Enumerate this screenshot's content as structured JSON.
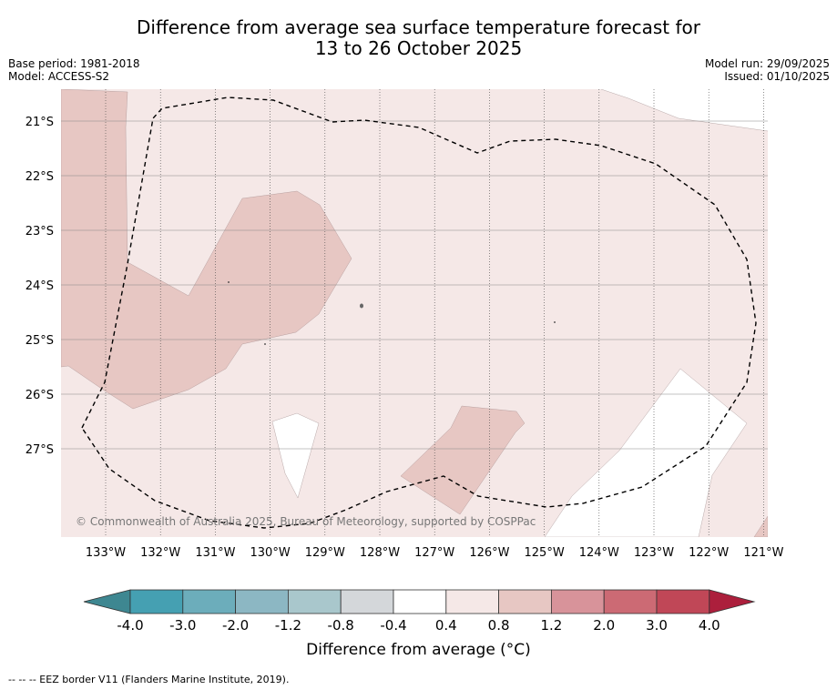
{
  "title": {
    "line1": "Difference from average sea surface temperature forecast for",
    "line2": "13 to 26 October 2025"
  },
  "meta": {
    "base_period": "Base period: 1981-2018",
    "model": "Model: ACCESS-S2",
    "model_run": "Model run: 29/09/2025",
    "issued": "Issued: 01/10/2025"
  },
  "map": {
    "lat_labels": [
      "21°S",
      "22°S",
      "23°S",
      "24°S",
      "25°S",
      "26°S",
      "27°S"
    ],
    "lon_labels": [
      "133°W",
      "132°W",
      "131°W",
      "130°W",
      "129°W",
      "128°W",
      "127°W",
      "126°W",
      "125°W",
      "124°W",
      "123°W",
      "122°W",
      "121°W"
    ],
    "copyright": "© Commonwealth of Australia 2025, Bureau of Meteorology, supported by COSPPac",
    "colors": {
      "anom_0_4_0_8": "#f5e8e7",
      "anom_0_8_1_2": "#e7c7c3",
      "anom_neutral": "#ffffff"
    }
  },
  "colorbar": {
    "ticks": [
      "-4.0",
      "-3.0",
      "-2.0",
      "-1.2",
      "-0.8",
      "-0.4",
      "0.4",
      "0.8",
      "1.2",
      "2.0",
      "3.0",
      "4.0"
    ],
    "colors": [
      "#3e8791",
      "#45a0b2",
      "#6cadbb",
      "#8cb7c3",
      "#a9c7cc",
      "#d4d7da",
      "#ffffff",
      "#f5e8e7",
      "#e7c7c3",
      "#d8939a",
      "#cc6a74",
      "#c04757",
      "#ac1f3c"
    ],
    "label": "Difference from average (°C)"
  },
  "footer": "--  --  -- EEZ border V11 (Flanders Marine Institute, 2019)."
}
